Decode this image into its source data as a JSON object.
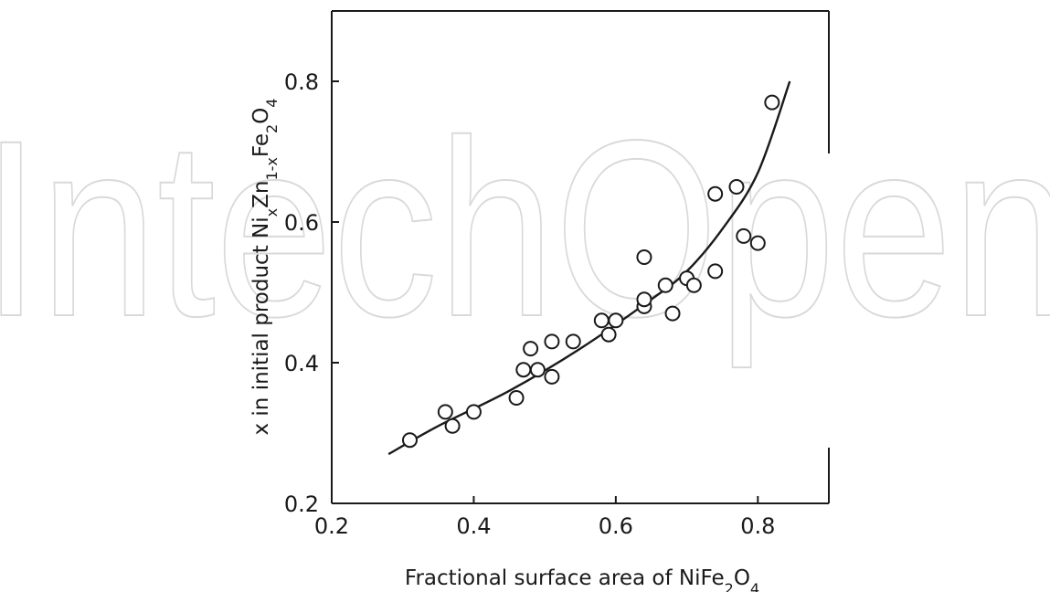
{
  "watermark": {
    "text": "IntechOpen",
    "color": "#d9d9d9"
  },
  "chart_data": {
    "type": "scatter",
    "xlabel": "Fractional surface area of NiFe2O4",
    "ylabel": "x in initial product NixZn1-xFe2O4",
    "xlim": [
      0.2,
      0.9
    ],
    "ylim": [
      0.2,
      0.9
    ],
    "xticks": [
      0.2,
      0.4,
      0.6,
      0.8
    ],
    "yticks": [
      0.2,
      0.4,
      0.6,
      0.8
    ],
    "xtick_labels": [
      "0.2",
      "0.4",
      "0.6",
      "0.8"
    ],
    "ytick_labels": [
      "0.2",
      "0.4",
      "0.6",
      "0.8"
    ],
    "grid": false,
    "marker": "open-circle",
    "points": [
      {
        "x": 0.31,
        "y": 0.29
      },
      {
        "x": 0.36,
        "y": 0.33
      },
      {
        "x": 0.37,
        "y": 0.31
      },
      {
        "x": 0.4,
        "y": 0.33
      },
      {
        "x": 0.46,
        "y": 0.35
      },
      {
        "x": 0.47,
        "y": 0.39
      },
      {
        "x": 0.48,
        "y": 0.42
      },
      {
        "x": 0.49,
        "y": 0.39
      },
      {
        "x": 0.51,
        "y": 0.38
      },
      {
        "x": 0.51,
        "y": 0.43
      },
      {
        "x": 0.54,
        "y": 0.43
      },
      {
        "x": 0.58,
        "y": 0.46
      },
      {
        "x": 0.59,
        "y": 0.44
      },
      {
        "x": 0.6,
        "y": 0.46
      },
      {
        "x": 0.64,
        "y": 0.48
      },
      {
        "x": 0.64,
        "y": 0.49
      },
      {
        "x": 0.64,
        "y": 0.55
      },
      {
        "x": 0.67,
        "y": 0.51
      },
      {
        "x": 0.68,
        "y": 0.47
      },
      {
        "x": 0.7,
        "y": 0.52
      },
      {
        "x": 0.71,
        "y": 0.51
      },
      {
        "x": 0.74,
        "y": 0.53
      },
      {
        "x": 0.74,
        "y": 0.64
      },
      {
        "x": 0.77,
        "y": 0.65
      },
      {
        "x": 0.78,
        "y": 0.58
      },
      {
        "x": 0.8,
        "y": 0.57
      },
      {
        "x": 0.82,
        "y": 0.77
      }
    ],
    "curve": [
      {
        "x": 0.28,
        "y": 0.27
      },
      {
        "x": 0.35,
        "y": 0.31
      },
      {
        "x": 0.45,
        "y": 0.36
      },
      {
        "x": 0.55,
        "y": 0.42
      },
      {
        "x": 0.65,
        "y": 0.49
      },
      {
        "x": 0.7,
        "y": 0.53
      },
      {
        "x": 0.75,
        "y": 0.59
      },
      {
        "x": 0.8,
        "y": 0.67
      },
      {
        "x": 0.845,
        "y": 0.8
      }
    ]
  }
}
